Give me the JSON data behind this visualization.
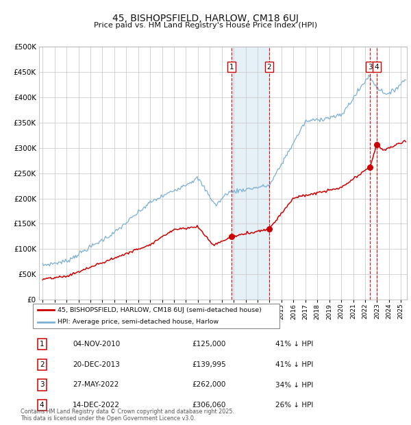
{
  "title": "45, BISHOPSFIELD, HARLOW, CM18 6UJ",
  "subtitle": "Price paid vs. HM Land Registry's House Price Index (HPI)",
  "legend_line1": "45, BISHOPSFIELD, HARLOW, CM18 6UJ (semi-detached house)",
  "legend_line2": "HPI: Average price, semi-detached house, Harlow",
  "footer": "Contains HM Land Registry data © Crown copyright and database right 2025.\nThis data is licensed under the Open Government Licence v3.0.",
  "table": [
    {
      "num": 1,
      "date": "04-NOV-2010",
      "price": "£125,000",
      "pct": "41% ↓ HPI"
    },
    {
      "num": 2,
      "date": "20-DEC-2013",
      "price": "£139,995",
      "pct": "41% ↓ HPI"
    },
    {
      "num": 3,
      "date": "27-MAY-2022",
      "price": "£262,000",
      "pct": "34% ↓ HPI"
    },
    {
      "num": 4,
      "date": "14-DEC-2022",
      "price": "£306,060",
      "pct": "26% ↓ HPI"
    }
  ],
  "sale_dates_decimal": [
    2010.84,
    2013.97,
    2022.41,
    2022.96
  ],
  "sale_prices": [
    125000,
    139995,
    262000,
    306060
  ],
  "shaded_region": [
    2010.84,
    2013.97
  ],
  "ylim": [
    0,
    500000
  ],
  "yticks": [
    0,
    50000,
    100000,
    150000,
    200000,
    250000,
    300000,
    350000,
    400000,
    450000,
    500000
  ],
  "xlim_start": 1994.7,
  "xlim_end": 2025.5,
  "hpi_color": "#7bafd4",
  "price_color": "#cc0000",
  "vline_color": "#cc0000",
  "grid_color": "#cccccc",
  "bg_color": "#ffffff"
}
